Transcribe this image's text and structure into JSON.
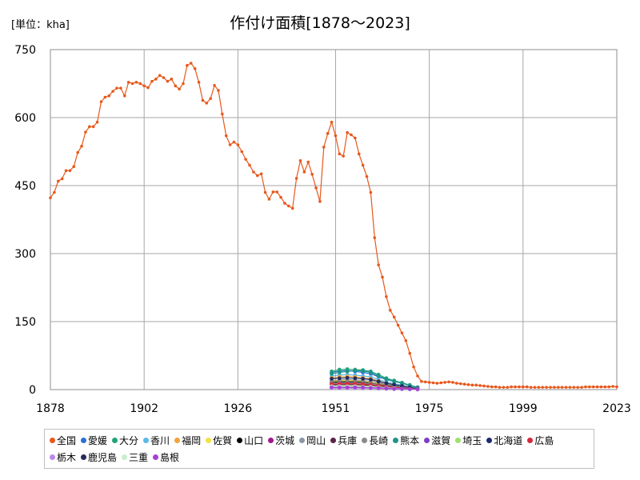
{
  "header": {
    "unit": "[単位：kha]",
    "title": "作付け面積[1878～2023]"
  },
  "chart_data": {
    "type": "line",
    "title": "作付け面積[1878～2023]",
    "unit": "[単位：kha]",
    "xlim": [
      1878,
      2023
    ],
    "ylim": [
      0,
      750
    ],
    "x_ticks": [
      1878,
      1902,
      1926,
      1951,
      1975,
      1999,
      2023
    ],
    "y_ticks": [
      0,
      150,
      300,
      450,
      600,
      750
    ],
    "grid": true,
    "legend_position": "bottom",
    "series": [
      {
        "name": "全国",
        "color": "#E8581C",
        "x": [
          1878,
          1879,
          1880,
          1881,
          1882,
          1883,
          1884,
          1885,
          1886,
          1887,
          1888,
          1889,
          1890,
          1891,
          1892,
          1893,
          1894,
          1895,
          1896,
          1897,
          1898,
          1899,
          1900,
          1901,
          1902,
          1903,
          1904,
          1905,
          1906,
          1907,
          1908,
          1909,
          1910,
          1911,
          1912,
          1913,
          1914,
          1915,
          1916,
          1917,
          1918,
          1919,
          1920,
          1921,
          1922,
          1923,
          1924,
          1925,
          1926,
          1927,
          1928,
          1929,
          1930,
          1931,
          1932,
          1933,
          1934,
          1935,
          1936,
          1937,
          1938,
          1939,
          1940,
          1941,
          1942,
          1943,
          1944,
          1945,
          1946,
          1947,
          1948,
          1949,
          1950,
          1951,
          1952,
          1953,
          1954,
          1955,
          1956,
          1957,
          1958,
          1959,
          1960,
          1961,
          1962,
          1963,
          1964,
          1965,
          1966,
          1967,
          1968,
          1969,
          1970,
          1971,
          1972,
          1973,
          1974,
          1975,
          1976,
          1977,
          1978,
          1979,
          1980,
          1981,
          1982,
          1983,
          1984,
          1985,
          1986,
          1987,
          1988,
          1989,
          1990,
          1991,
          1992,
          1993,
          1994,
          1995,
          1996,
          1997,
          1998,
          1999,
          2000,
          2001,
          2002,
          2003,
          2004,
          2005,
          2006,
          2007,
          2008,
          2009,
          2010,
          2011,
          2012,
          2013,
          2014,
          2015,
          2016,
          2017,
          2018,
          2019,
          2020,
          2021,
          2022,
          2023
        ],
        "values": [
          423,
          435,
          460,
          465,
          483,
          483,
          492,
          523,
          537,
          568,
          580,
          580,
          590,
          635,
          645,
          648,
          658,
          665,
          665,
          648,
          678,
          675,
          678,
          675,
          670,
          666,
          680,
          685,
          693,
          688,
          680,
          685,
          670,
          663,
          675,
          715,
          720,
          708,
          678,
          638,
          632,
          642,
          671,
          660,
          608,
          560,
          540,
          546,
          540,
          525,
          508,
          495,
          480,
          472,
          476,
          435,
          420,
          436,
          436,
          424,
          411,
          405,
          400,
          466,
          505,
          480,
          502,
          475,
          445,
          415,
          535,
          565,
          590,
          560,
          520,
          515,
          567,
          562,
          555,
          520,
          495,
          470,
          435,
          335,
          275,
          248,
          205,
          175,
          160,
          142,
          125,
          108,
          80,
          50,
          30,
          18,
          17,
          16,
          15,
          14,
          15,
          16,
          17,
          16,
          14,
          13,
          12,
          11,
          10,
          10,
          9,
          8,
          7,
          6,
          6,
          5,
          5,
          5,
          6,
          6,
          6,
          6,
          6,
          5,
          5,
          5,
          5,
          5,
          5,
          5,
          5,
          5,
          5,
          5,
          5,
          5,
          5,
          6,
          6,
          6,
          6,
          6,
          6,
          6,
          7,
          6
        ]
      },
      {
        "name": "愛媛",
        "color": "#2B6FD6",
        "x": [
          1950,
          1952,
          1954,
          1956,
          1958,
          1960,
          1962,
          1964,
          1966,
          1968,
          1970,
          1972
        ],
        "values": [
          38,
          41,
          42,
          40,
          38,
          35,
          28,
          22,
          18,
          15,
          10,
          5
        ]
      },
      {
        "name": "大分",
        "color": "#23A37A",
        "x": [
          1950,
          1952,
          1954,
          1956,
          1958,
          1960,
          1962,
          1964,
          1966,
          1968,
          1970,
          1972
        ],
        "values": [
          40,
          44,
          45,
          44,
          43,
          40,
          33,
          25,
          20,
          15,
          10,
          5
        ]
      },
      {
        "name": "香川",
        "color": "#5BB8E8",
        "x": [
          1950,
          1952,
          1954,
          1956,
          1958,
          1960,
          1962,
          1964,
          1966,
          1968,
          1970,
          1972
        ],
        "values": [
          30,
          32,
          33,
          32,
          30,
          28,
          22,
          17,
          13,
          10,
          6,
          3
        ]
      },
      {
        "name": "福岡",
        "color": "#F2A33C",
        "x": [
          1950,
          1952,
          1954,
          1956,
          1958,
          1960,
          1962,
          1964,
          1966,
          1968,
          1970,
          1972
        ],
        "values": [
          26,
          28,
          29,
          28,
          26,
          24,
          19,
          14,
          11,
          8,
          5,
          2
        ]
      },
      {
        "name": "佐賀",
        "color": "#F2E23C",
        "x": [
          1950,
          1952,
          1954,
          1956,
          1958,
          1960,
          1962,
          1964,
          1966,
          1968,
          1970,
          1972
        ],
        "values": [
          18,
          19,
          20,
          19,
          18,
          16,
          13,
          10,
          8,
          6,
          4,
          2
        ]
      },
      {
        "name": "山口",
        "color": "#000000",
        "x": [
          1950,
          1952,
          1954,
          1956,
          1958,
          1960,
          1962,
          1964,
          1966,
          1968,
          1970,
          1972
        ],
        "values": [
          16,
          17,
          17,
          17,
          16,
          14,
          11,
          9,
          7,
          5,
          3,
          1
        ]
      },
      {
        "name": "茨城",
        "color": "#A0188C",
        "x": [
          1950,
          1952,
          1954,
          1956,
          1958,
          1960,
          1962,
          1964,
          1966,
          1968,
          1970,
          1972
        ],
        "values": [
          6,
          6,
          6,
          6,
          5,
          5,
          4,
          3,
          2,
          2,
          1,
          1
        ]
      },
      {
        "name": "岡山",
        "color": "#8C96A8",
        "x": [
          1950,
          1952,
          1954,
          1956,
          1958,
          1960,
          1962,
          1964,
          1966,
          1968,
          1970,
          1972
        ],
        "values": [
          14,
          15,
          15,
          15,
          14,
          13,
          10,
          8,
          6,
          5,
          3,
          1
        ]
      },
      {
        "name": "兵庫",
        "color": "#5A2347",
        "x": [
          1950,
          1952,
          1954,
          1956,
          1958,
          1960,
          1962,
          1964,
          1966,
          1968,
          1970,
          1972
        ],
        "values": [
          10,
          11,
          11,
          11,
          10,
          9,
          7,
          6,
          4,
          3,
          2,
          1
        ]
      },
      {
        "name": "長崎",
        "color": "#8A8A8A",
        "x": [
          1950,
          1952,
          1954,
          1956,
          1958,
          1960,
          1962,
          1964,
          1966,
          1968,
          1970,
          1972
        ],
        "values": [
          20,
          21,
          22,
          21,
          20,
          18,
          15,
          11,
          9,
          7,
          4,
          2
        ]
      },
      {
        "name": "熊本",
        "color": "#1E9488",
        "x": [
          1950,
          1952,
          1954,
          1956,
          1958,
          1960,
          1962,
          1964,
          1966,
          1968,
          1970,
          1972
        ],
        "values": [
          35,
          38,
          40,
          42,
          41,
          38,
          30,
          23,
          18,
          14,
          9,
          4
        ]
      },
      {
        "name": "滋賀",
        "color": "#7B3FC4",
        "x": [
          1950,
          1952,
          1954,
          1956,
          1958,
          1960,
          1962,
          1964,
          1966,
          1968,
          1970,
          1972
        ],
        "values": [
          5,
          5,
          5,
          5,
          4,
          4,
          3,
          3,
          2,
          2,
          1,
          1
        ]
      },
      {
        "name": "埼玉",
        "color": "#9BE26A",
        "x": [
          1950,
          1952,
          1954,
          1956,
          1958,
          1960,
          1962,
          1964,
          1966,
          1968,
          1970,
          1972
        ],
        "values": [
          8,
          8,
          9,
          8,
          8,
          7,
          6,
          4,
          3,
          2,
          1,
          1
        ]
      },
      {
        "name": "北海道",
        "color": "#1E2A6E",
        "x": [
          1950,
          1952,
          1954,
          1956,
          1958,
          1960,
          1962,
          1964,
          1966,
          1968,
          1970,
          1972
        ],
        "values": [
          4,
          4,
          4,
          4,
          3,
          3,
          3,
          2,
          2,
          1,
          1,
          1
        ]
      },
      {
        "name": "広島",
        "color": "#D6283C",
        "x": [
          1950,
          1952,
          1954,
          1956,
          1958,
          1960,
          1962,
          1964,
          1966,
          1968,
          1970,
          1972
        ],
        "values": [
          12,
          13,
          13,
          13,
          12,
          11,
          9,
          7,
          5,
          4,
          2,
          1
        ]
      },
      {
        "name": "栃木",
        "color": "#B98AE6",
        "x": [
          1950,
          1952,
          1954,
          1956,
          1958,
          1960,
          1962,
          1964,
          1966,
          1968,
          1970,
          1972
        ],
        "values": [
          3,
          3,
          3,
          3,
          3,
          3,
          2,
          2,
          1,
          1,
          1,
          0
        ]
      },
      {
        "name": "鹿児島",
        "color": "#232B5C",
        "x": [
          1950,
          1952,
          1954,
          1956,
          1958,
          1960,
          1962,
          1964,
          1966,
          1968,
          1970,
          1972
        ],
        "values": [
          24,
          25,
          26,
          25,
          24,
          22,
          18,
          14,
          11,
          8,
          5,
          2
        ]
      },
      {
        "name": "三重",
        "color": "#C8EDCF",
        "x": [
          1950,
          1952,
          1954,
          1956,
          1958,
          1960,
          1962,
          1964,
          1966,
          1968,
          1970,
          1972
        ],
        "values": [
          7,
          7,
          7,
          7,
          6,
          6,
          5,
          4,
          3,
          2,
          1,
          1
        ]
      },
      {
        "name": "島根",
        "color": "#A93FD6",
        "x": [
          1950,
          1952,
          1954,
          1956,
          1958,
          1960,
          1962,
          1964,
          1966,
          1968,
          1970,
          1972
        ],
        "values": [
          5,
          5,
          5,
          5,
          5,
          4,
          4,
          3,
          2,
          2,
          1,
          1
        ]
      }
    ]
  }
}
